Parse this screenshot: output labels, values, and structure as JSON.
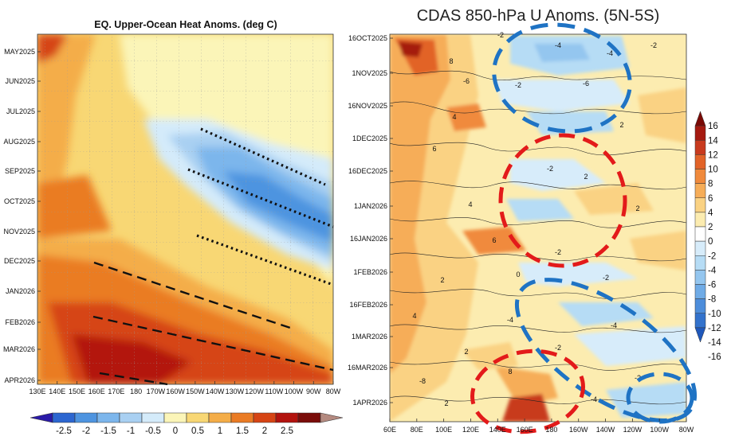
{
  "chart_data": [
    {
      "type": "heatmap",
      "title": "EQ. Upper-Ocean Heat Anoms. (deg C)",
      "xlabel": "",
      "ylabel": "",
      "x_ticks": [
        "130E",
        "140E",
        "150E",
        "160E",
        "170E",
        "180",
        "170W",
        "160W",
        "150W",
        "140W",
        "130W",
        "120W",
        "110W",
        "100W",
        "90W",
        "80W"
      ],
      "y_ticks": [
        "MAY2025",
        "JUN2025",
        "JUL2025",
        "AUG2025",
        "SEP2025",
        "OCT2025",
        "NOV2025",
        "DEC2025",
        "JAN2026",
        "FEB2026",
        "MAR2026",
        "APR2026"
      ],
      "colorbar": {
        "ticks": [
          "-2.5",
          "-2",
          "-1.5",
          "-1",
          "-0.5",
          "0",
          "0.5",
          "1",
          "1.5",
          "2",
          "2.5"
        ],
        "colors": [
          "#2a1aa8",
          "#2c66d0",
          "#4e94e0",
          "#7cb6ec",
          "#a9d0f2",
          "#d4ebfa",
          "#fbf5b8",
          "#f8d774",
          "#f4ad48",
          "#ea7b24",
          "#d64414",
          "#b3130e",
          "#7a0c0a",
          "#b48a80"
        ]
      },
      "annotations": {
        "dotted_lines": 3,
        "dashed_lines": 3
      }
    },
    {
      "type": "heatmap",
      "title": "CDAS 850-hPa U Anoms. (5N-5S)",
      "xlabel": "",
      "ylabel": "",
      "x_ticks": [
        "60E",
        "80E",
        "100E",
        "120E",
        "140E",
        "160E",
        "180",
        "160W",
        "140W",
        "120W",
        "100W",
        "80W"
      ],
      "y_ticks": [
        "16OCT2025",
        "1NOV2025",
        "16NOV2025",
        "1DEC2025",
        "16DEC2025",
        "1JAN2026",
        "16JAN2026",
        "1FEB2026",
        "16FEB2026",
        "1MAR2026",
        "16MAR2026",
        "1APR2026"
      ],
      "colorbar": {
        "ticks": [
          "16",
          "14",
          "12",
          "10",
          "8",
          "6",
          "4",
          "2",
          "0",
          "-2",
          "-4",
          "-6",
          "-8",
          "-10",
          "-12",
          "-14",
          "-16"
        ],
        "colors": [
          "#7a0a06",
          "#a51a10",
          "#c83a1e",
          "#e26328",
          "#f08a3c",
          "#f6ad58",
          "#fad283",
          "#fcecb0",
          "#ffffff",
          "#d7ecfa",
          "#b6dcf5",
          "#94c6ef",
          "#6fabe6",
          "#4d8ddb",
          "#3372cc",
          "#1f58bb"
        ]
      },
      "contour_labels": [
        "-2",
        "-4",
        "-6",
        "2",
        "4",
        "6",
        "8",
        "-8",
        "0"
      ],
      "annotations": {
        "blue_dashed_ellipses": 3,
        "red_dashed_ellipses": 2
      }
    }
  ]
}
